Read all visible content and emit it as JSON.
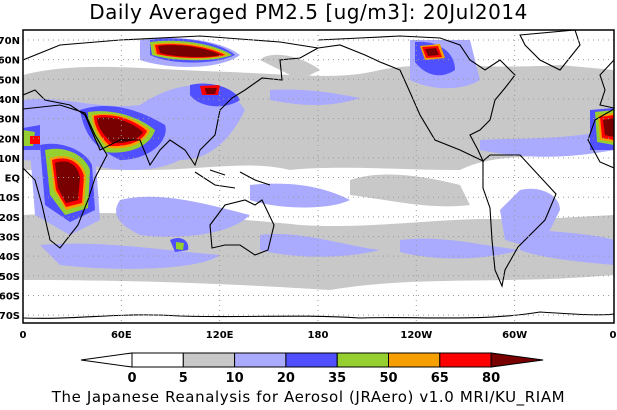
{
  "title": "Daily Averaged PM2.5 [ug/m3]: 20Jul2014",
  "footer": "The Japanese Reanalysis for Aerosol (JRAero) v1.0 MRI/KU_RIAM",
  "map": {
    "lat_labels": [
      "70N",
      "60N",
      "50N",
      "40N",
      "30N",
      "20N",
      "10N",
      "EQ",
      "10S",
      "20S",
      "30S",
      "40S",
      "50S",
      "60S",
      "70S"
    ],
    "lon_labels": [
      "0",
      "60E",
      "120E",
      "180",
      "120W",
      "60W",
      "0"
    ]
  },
  "colorbar": {
    "levels": [
      "0",
      "5",
      "10",
      "20",
      "35",
      "50",
      "65",
      "80"
    ],
    "colors": [
      "#ffffff",
      "#ffffff",
      "#c8c8c8",
      "#aaaaff",
      "#5050ff",
      "#96d030",
      "#f5a000",
      "#ff0000",
      "#780000"
    ]
  }
}
